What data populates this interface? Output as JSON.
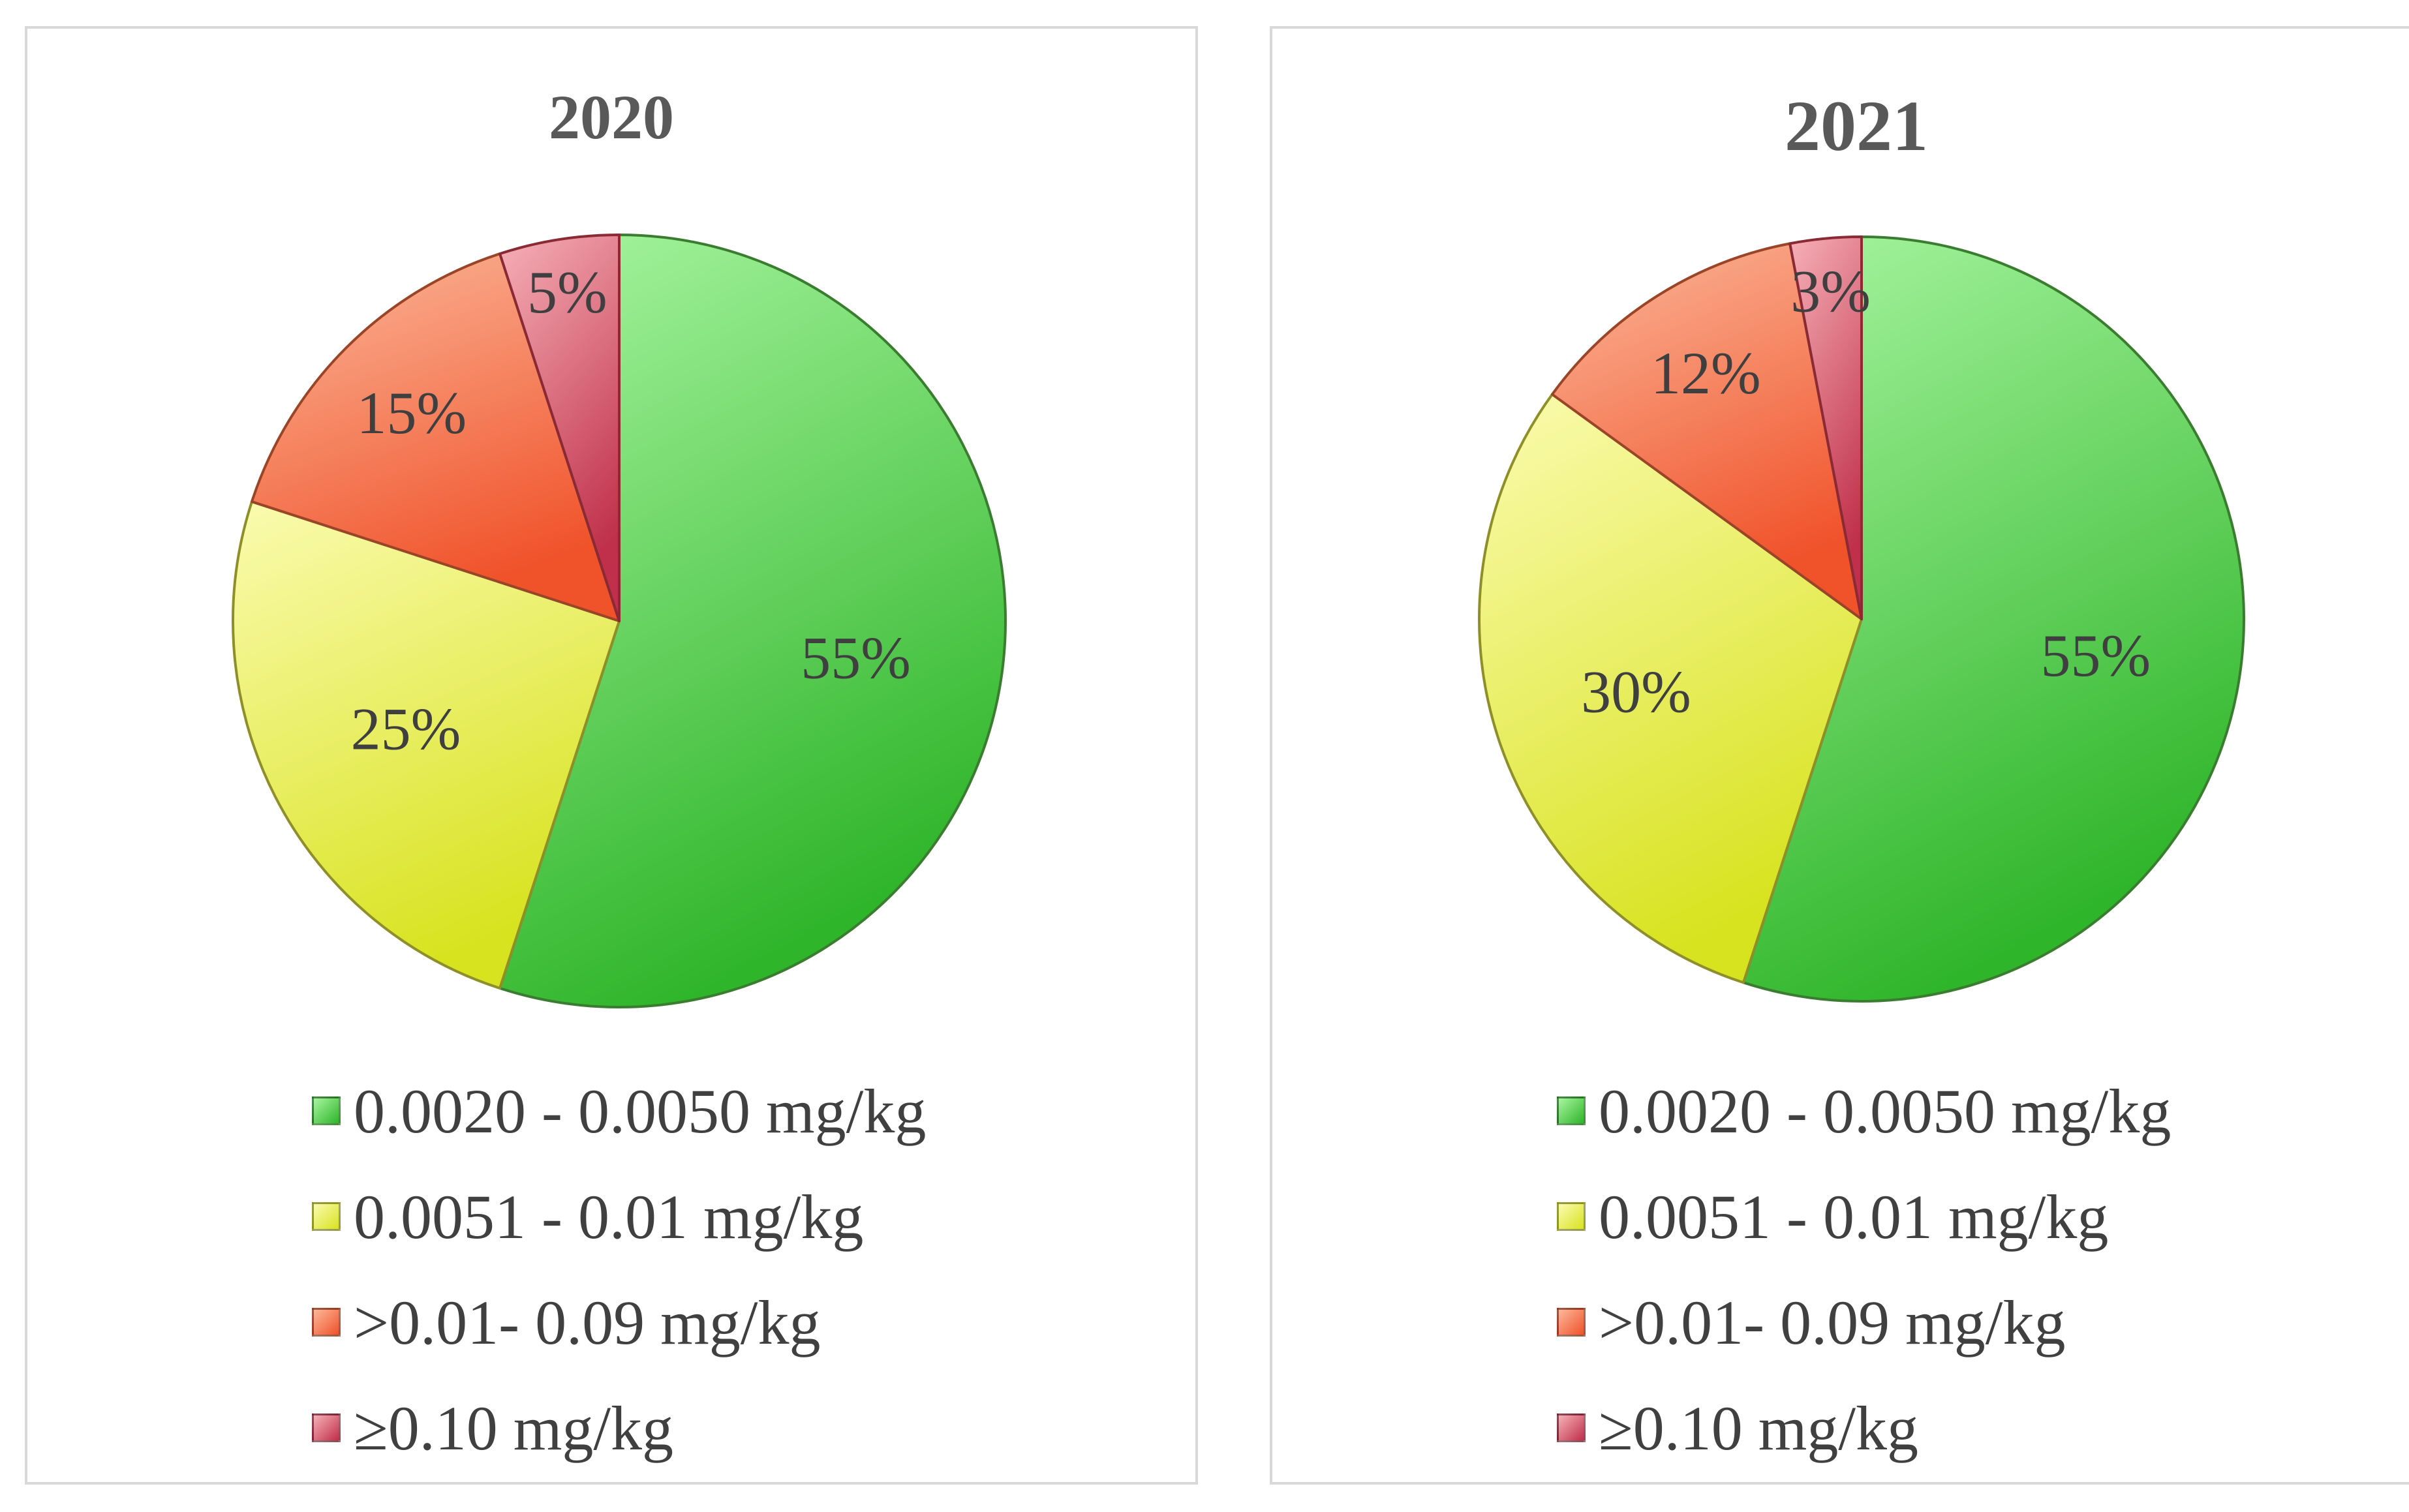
{
  "chart_data": [
    {
      "type": "pie",
      "title": "2020",
      "categories": [
        "0.0020 - 0.0050 mg/kg",
        "0.0051 - 0.01 mg/kg",
        ">0.01- 0.09 mg/kg",
        "≥0.10 mg/kg"
      ],
      "values": [
        55,
        25,
        15,
        5
      ],
      "data_labels": [
        "55%",
        "25%",
        "15%",
        "5%"
      ],
      "legend_position": "bottom"
    },
    {
      "type": "pie",
      "title": "2021",
      "categories": [
        "0.0020 - 0.0050 mg/kg",
        "0.0051 - 0.01 mg/kg",
        ">0.01- 0.09 mg/kg",
        "≥0.10 mg/kg"
      ],
      "values": [
        55,
        30,
        12,
        3
      ],
      "data_labels": [
        "55%",
        "30%",
        "12%",
        "3%"
      ],
      "legend_position": "bottom"
    }
  ],
  "colors": {
    "green": "#5cc94a",
    "yellow": "#f2f26a",
    "orange": "#f58a5c",
    "red": "#e0727e"
  }
}
